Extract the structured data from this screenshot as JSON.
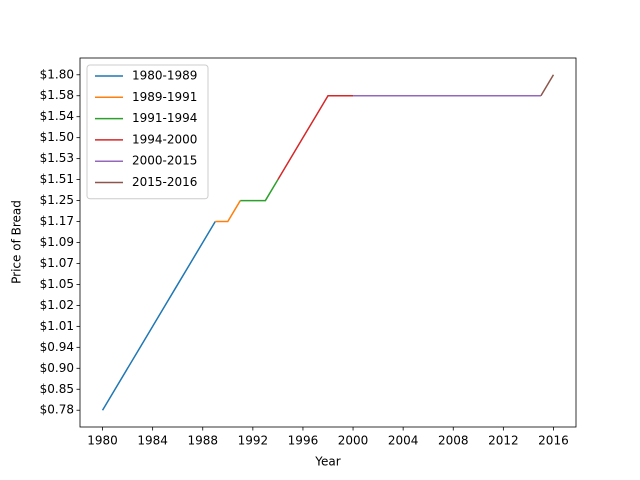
{
  "chart_data": {
    "type": "line",
    "xlabel": "Year",
    "ylabel": "Price of Bread",
    "xlim": [
      1978.2,
      2017.8
    ],
    "xticks": [
      1980,
      1984,
      1988,
      1992,
      1996,
      2000,
      2004,
      2008,
      2012,
      2016
    ],
    "y_categories": [
      "$0.78",
      "$0.85",
      "$0.90",
      "$0.94",
      "$1.01",
      "$1.02",
      "$1.05",
      "$1.07",
      "$1.09",
      "$1.17",
      "$1.25",
      "$1.51",
      "$1.53",
      "$1.50",
      "$1.54",
      "$1.58",
      "$1.80"
    ],
    "legend": "upper left",
    "series": [
      {
        "name": "1980-1989",
        "color": "#1f77b4",
        "x": [
          1980,
          1981,
          1982,
          1983,
          1984,
          1985,
          1986,
          1987,
          1988,
          1989
        ],
        "values": [
          "$0.78",
          "$0.85",
          "$0.90",
          "$0.94",
          "$1.01",
          "$1.02",
          "$1.05",
          "$1.07",
          "$1.09",
          "$1.17"
        ]
      },
      {
        "name": "1989-1991",
        "color": "#ff7f0e",
        "x": [
          1989,
          1990,
          1991
        ],
        "values": [
          "$1.17",
          "$1.17",
          "$1.25"
        ]
      },
      {
        "name": "1991-1994",
        "color": "#2ca02c",
        "x": [
          1991,
          1992,
          1993,
          1994
        ],
        "values": [
          "$1.25",
          "$1.25",
          "$1.25",
          "$1.51"
        ]
      },
      {
        "name": "1994-2000",
        "color": "#d62728",
        "x": [
          1994,
          1995,
          1996,
          1997,
          1998,
          1999,
          2000
        ],
        "values": [
          "$1.51",
          "$1.53",
          "$1.50",
          "$1.54",
          "$1.58",
          "$1.58",
          "$1.58"
        ]
      },
      {
        "name": "2000-2015",
        "color": "#9467bd",
        "x": [
          2000,
          2001,
          2002,
          2003,
          2004,
          2005,
          2006,
          2007,
          2008,
          2009,
          2010,
          2011,
          2012,
          2013,
          2014,
          2015
        ],
        "values": [
          "$1.58",
          "$1.58",
          "$1.58",
          "$1.58",
          "$1.58",
          "$1.58",
          "$1.58",
          "$1.58",
          "$1.58",
          "$1.58",
          "$1.58",
          "$1.58",
          "$1.58",
          "$1.58",
          "$1.58",
          "$1.58"
        ]
      },
      {
        "name": "2015-2016",
        "color": "#8c564b",
        "x": [
          2015,
          2016
        ],
        "values": [
          "$1.58",
          "$1.80"
        ]
      }
    ]
  }
}
